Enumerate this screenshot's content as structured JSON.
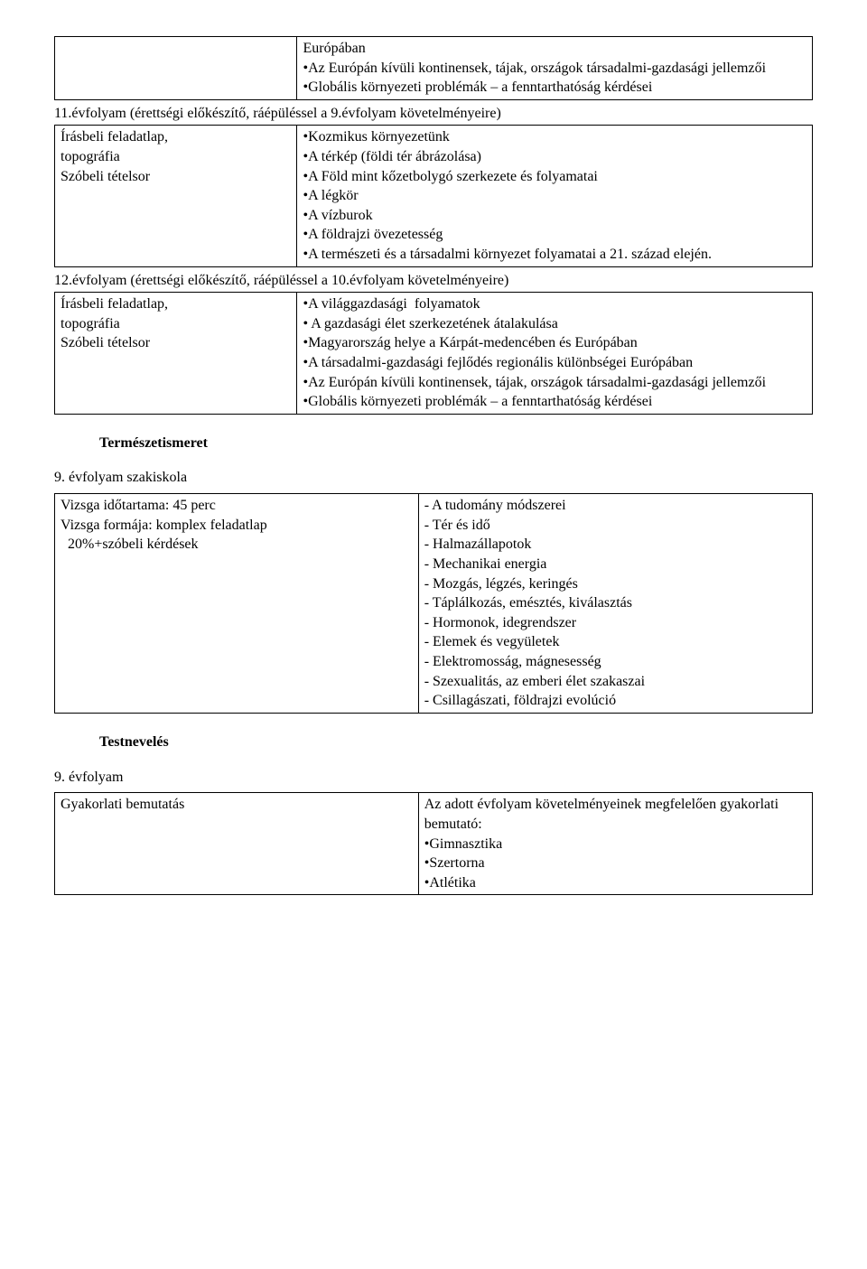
{
  "table1": {
    "left": "",
    "right": "Európában\n•Az Európán kívüli kontinensek, tájak, országok társadalmi-gazdasági jellemzői\n•Globális környezeti problémák – a fenntarthatóság kérdései"
  },
  "line11": "11.évfolyam (érettségi előkészítő, ráépüléssel a 9.évfolyam követelményeire)",
  "table2": {
    "left": "Írásbeli feladatlap,\ntopográfia\nSzóbeli tételsor",
    "right": "•Kozmikus környezetünk\n•A térkép (földi tér ábrázolása)\n•A Föld mint kőzetbolygó szerkezete és folyamatai\n•A légkör\n•A vízburok\n•A földrajzi övezetesség\n•A természeti és a társadalmi környezet folyamatai a 21. század elején."
  },
  "line12": "12.évfolyam (érettségi előkészítő, ráépüléssel a 10.évfolyam követelményeire)",
  "table3": {
    "left": "Írásbeli feladatlap,\ntopográfia\nSzóbeli tételsor",
    "right": "•A világgazdasági  folyamatok\n• A gazdasági élet szerkezetének átalakulása\n•Magyarország helye a Kárpát-medencében és Európában\n•A társadalmi-gazdasági fejlődés regionális különbségei Európában\n•Az Európán kívüli kontinensek, tájak, országok társadalmi-gazdasági jellemzői\n•Globális környezeti problémák – a fenntarthatóság kérdései"
  },
  "heading_termeszet": "Természetismeret",
  "sub9_szak": "9. évfolyam szakiskola",
  "table4": {
    "left": "Vizsga időtartama: 45 perc\nVizsga formája: komplex feladatlap\n  20%+szóbeli kérdések",
    "right": "- A tudomány módszerei\n- Tér és idő\n- Halmazállapotok\n- Mechanikai energia\n- Mozgás, légzés, keringés\n- Táplálkozás, emésztés, kiválasztás\n- Hormonok, idegrendszer\n- Elemek és vegyületek\n- Elektromosság, mágnesesség\n- Szexualitás, az emberi élet szakaszai\n- Csillagászati, földrajzi evolúció"
  },
  "heading_testneveles": "Testnevelés",
  "sub9": "9. évfolyam",
  "table5": {
    "left": "Gyakorlati bemutatás",
    "right": "Az adott évfolyam követelményeinek megfelelően gyakorlati bemutató:\n•Gimnasztika\n•Szertorna\n•Atlétika"
  }
}
